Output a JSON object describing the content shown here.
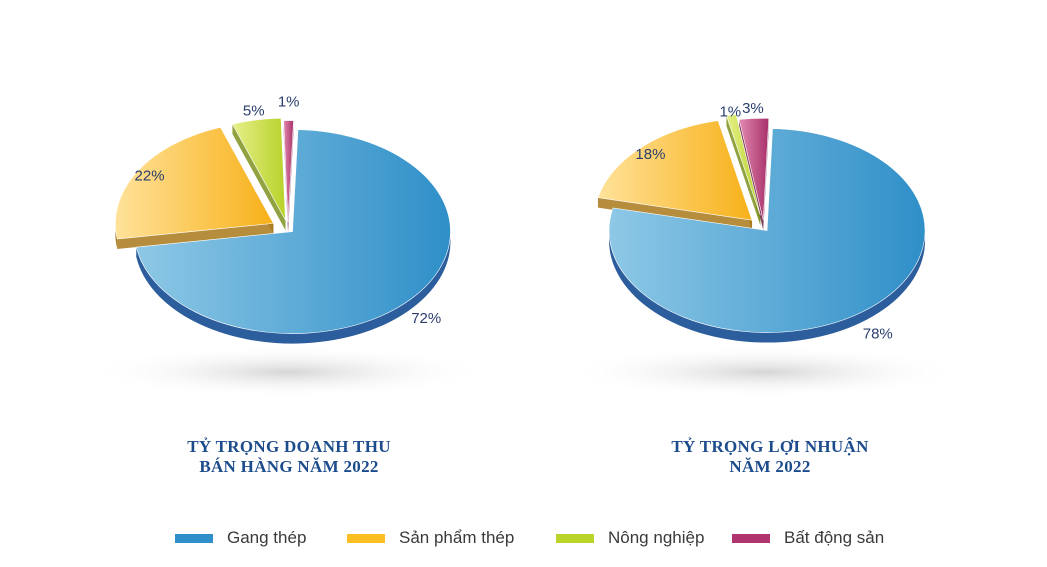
{
  "chart_data": [
    {
      "type": "pie",
      "title": "TỶ TRỌNG DOANH THU BÁN HÀNG NĂM 2022",
      "title_lines": [
        "TỶ TRỌNG DOANH THU",
        "BÁN HÀNG NĂM 2022"
      ],
      "slices": [
        {
          "name": "Gang thép",
          "value": 72,
          "label": "72%"
        },
        {
          "name": "Sản phẩm thép",
          "value": 22,
          "label": "22%"
        },
        {
          "name": "Nông nghiệp",
          "value": 5,
          "label": "5%"
        },
        {
          "name": "Bất động sản",
          "value": 1,
          "label": "1%"
        }
      ]
    },
    {
      "type": "pie",
      "title": "TỶ TRỌNG LỢI NHUẬN NĂM 2022",
      "title_lines": [
        "TỶ TRỌNG LỢI NHUẬN",
        "NĂM 2022"
      ],
      "slices": [
        {
          "name": "Gang thép",
          "value": 78,
          "label": "78%"
        },
        {
          "name": "Sản phẩm thép",
          "value": 18,
          "label": "18%"
        },
        {
          "name": "Nông nghiệp",
          "value": 1,
          "label": "1%"
        },
        {
          "name": "Bất động sản",
          "value": 3,
          "label": "3%"
        }
      ]
    }
  ],
  "legend": [
    {
      "name": "Gang thép",
      "color": "#2f8fc8"
    },
    {
      "name": "Sản phẩm thép",
      "color": "#fbbf24"
    },
    {
      "name": "Nông nghiệp",
      "color": "#bcd42a"
    },
    {
      "name": "Bất động sản",
      "color": "#b0356f"
    }
  ],
  "colors": {
    "Gang thép": {
      "light": "#8ec8e6",
      "dark": "#2f8fc8",
      "side": "#2c5d9c"
    },
    "Sản phẩm thép": {
      "light": "#ffe29a",
      "dark": "#f7b119",
      "side": "#a8791a"
    },
    "Nông nghiệp": {
      "light": "#e6f08a",
      "dark": "#b8d22a",
      "side": "#7e9220"
    },
    "Bất động sản": {
      "light": "#e38ab1",
      "dark": "#a8306a",
      "side": "#6c1c44"
    }
  },
  "title_color": "#1c4c8c",
  "label_color": "#2a3d6e"
}
